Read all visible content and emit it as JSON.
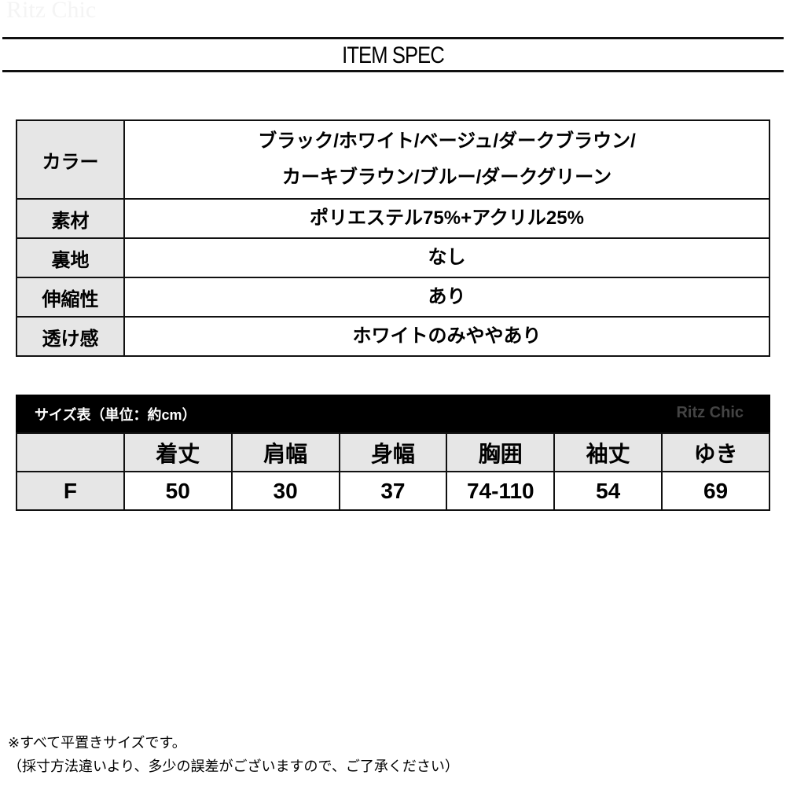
{
  "watermark": "Ritz Chic",
  "title": "ITEM SPEC",
  "spec": [
    {
      "label": "カラー",
      "lines": [
        "ブラック/ホワイト/ベージュ/ダークブラウン/",
        "カーキブラウン/ブルー/ダークグリーン"
      ]
    },
    {
      "label": "素材",
      "lines": [
        "ポリエステル75%+アクリル25%"
      ]
    },
    {
      "label": "裏地",
      "lines": [
        "なし"
      ]
    },
    {
      "label": "伸縮性",
      "lines": [
        "あり"
      ]
    },
    {
      "label": "透け感",
      "lines": [
        "ホワイトのみややあり"
      ]
    }
  ],
  "size_table": {
    "title": "サイズ表（単位：約cm）",
    "brand": "Ritz Chic",
    "headers": [
      "",
      "着丈",
      "肩幅",
      "身幅",
      "胸囲",
      "袖丈",
      "ゆき"
    ],
    "rows": [
      [
        "F",
        "50",
        "30",
        "37",
        "74-110",
        "54",
        "69"
      ]
    ]
  },
  "notes": [
    "※すべて平置きサイズです。",
    "（採寸方法違いより、多少の誤差がございますので、ご了承ください）"
  ]
}
